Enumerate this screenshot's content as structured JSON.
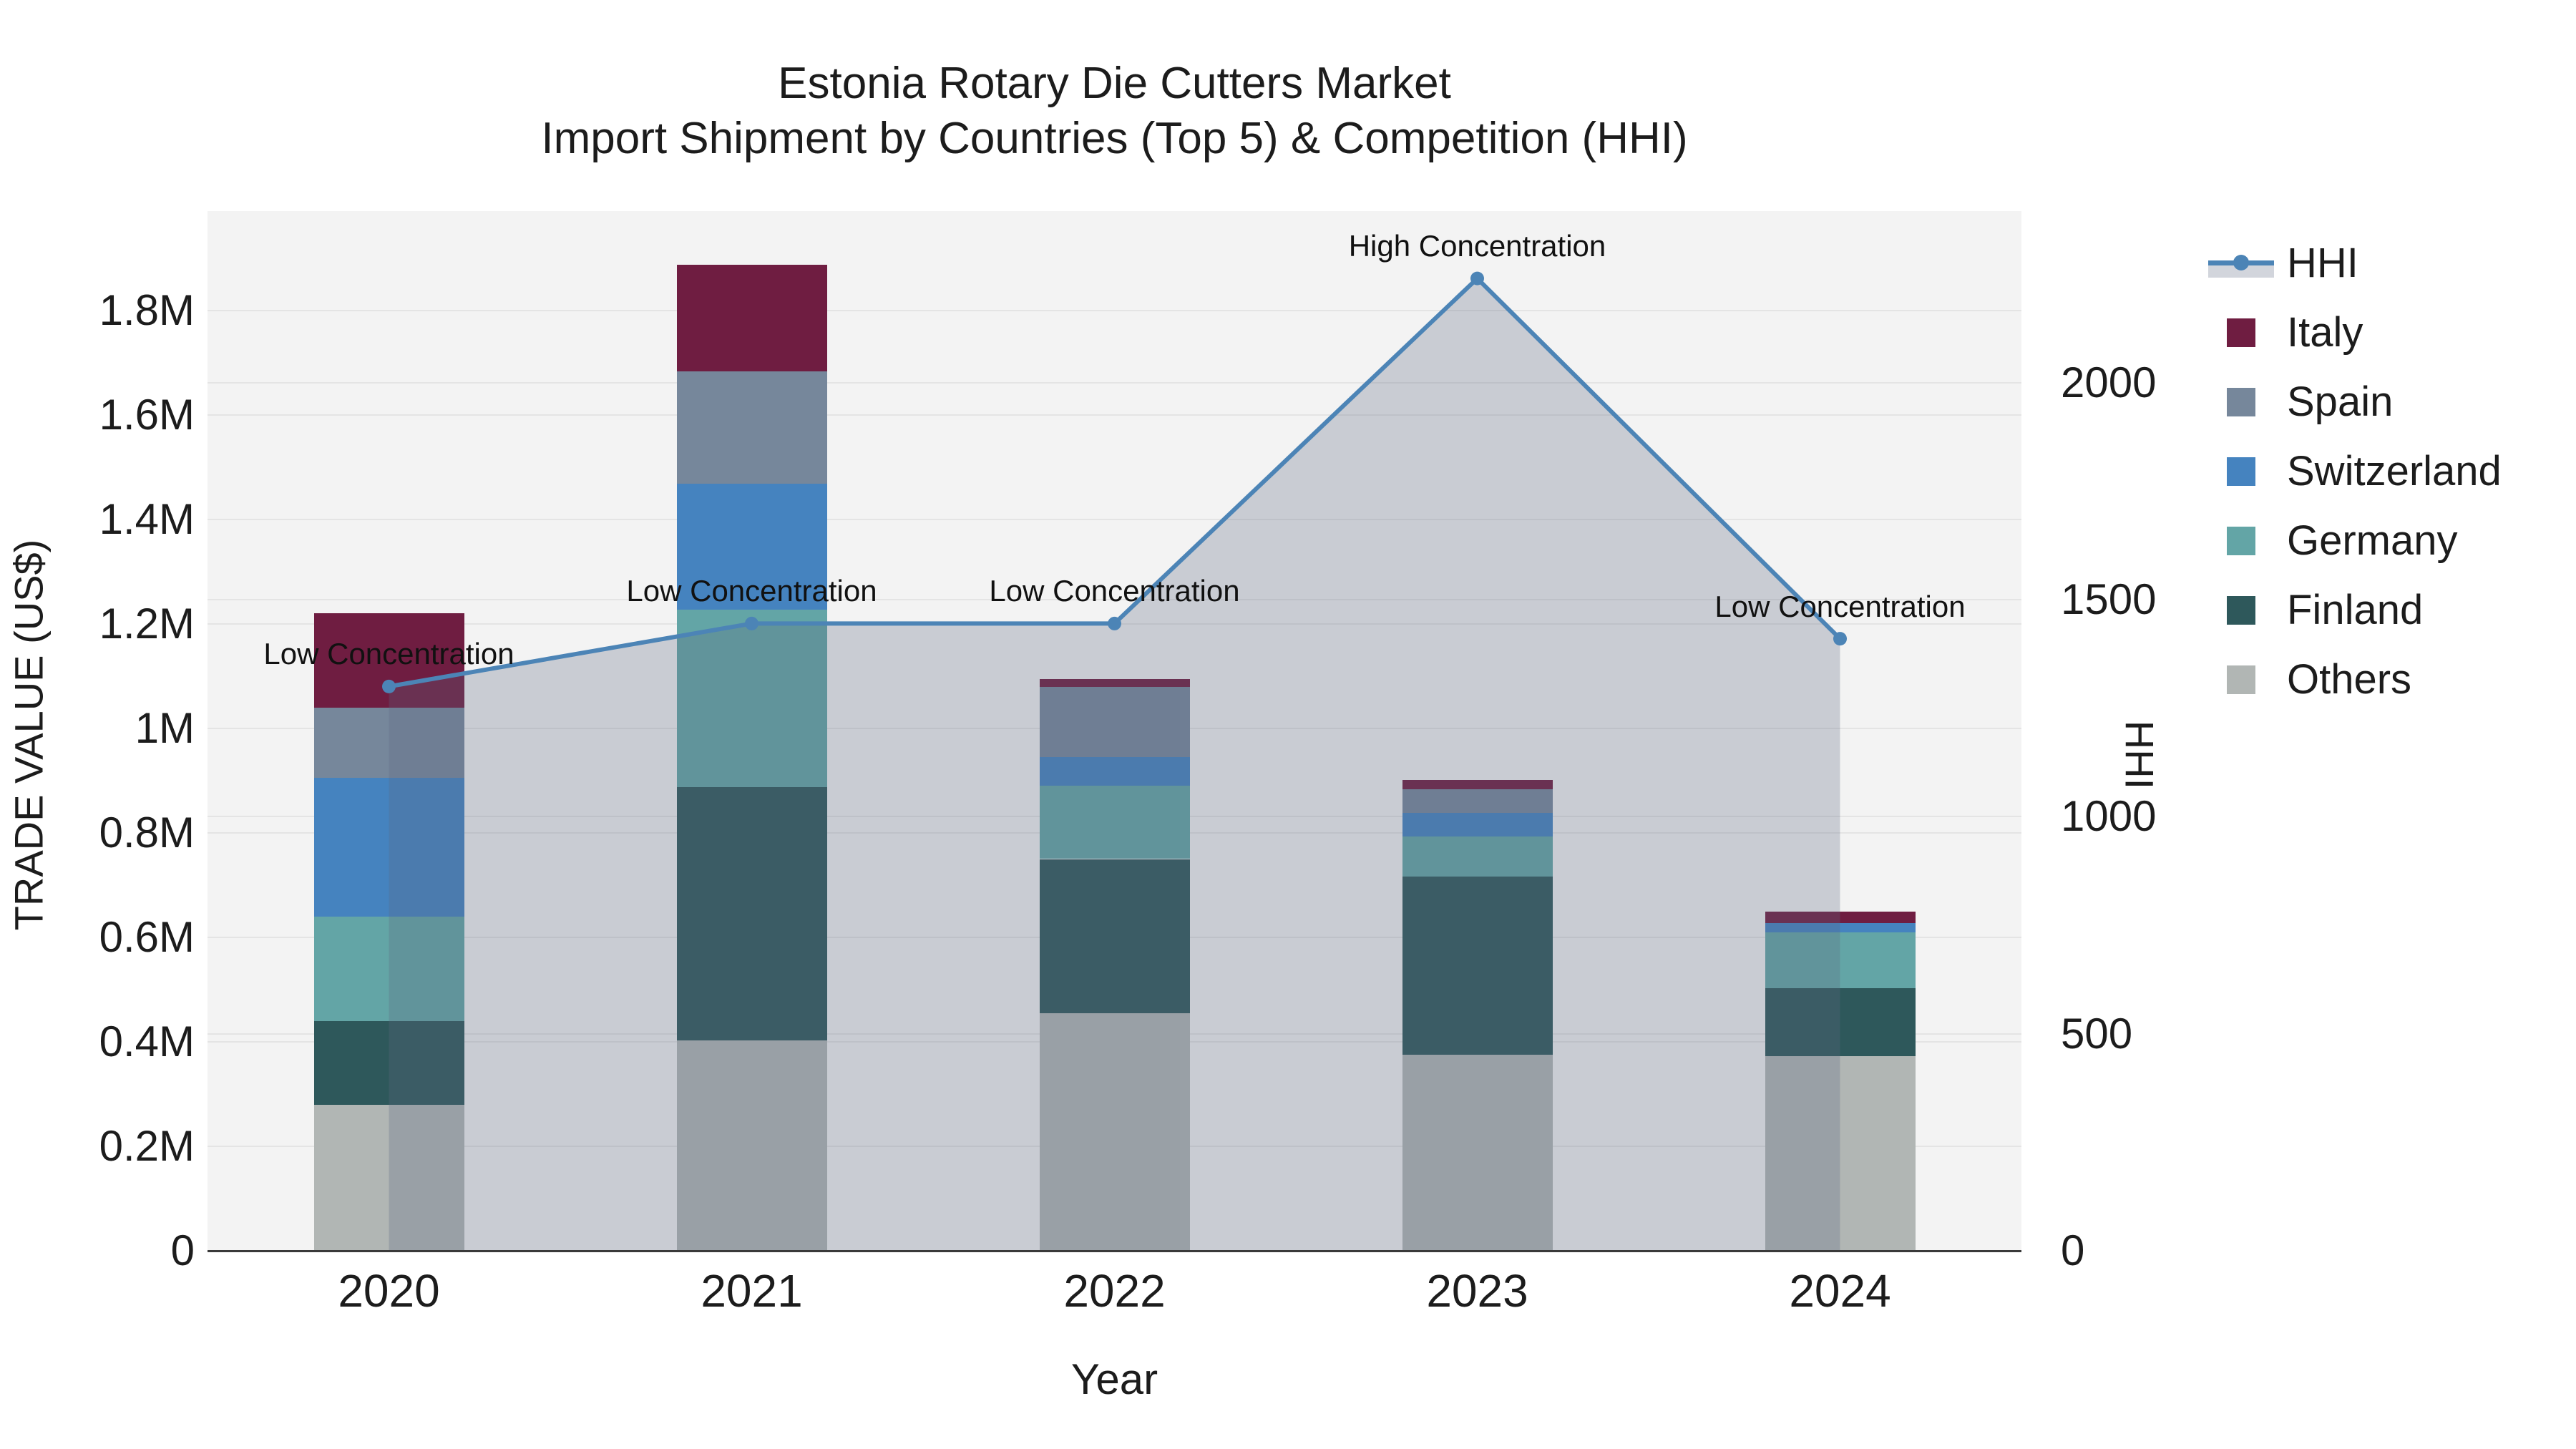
{
  "title": {
    "line1": "Estonia Rotary Die Cutters Market",
    "line2": "Import Shipment by Countries (Top 5) & Competition (HHI)"
  },
  "axes": {
    "x": {
      "label": "Year",
      "ticks": [
        "2020",
        "2021",
        "2022",
        "2023",
        "2024"
      ]
    },
    "y_left": {
      "label": "TRADE VALUE (US$)",
      "ticks": [
        "0",
        "0.2M",
        "0.4M",
        "0.6M",
        "0.8M",
        "1M",
        "1.2M",
        "1.4M",
        "1.6M",
        "1.8M"
      ]
    },
    "y_right": {
      "label": "HHI",
      "ticks": [
        "0",
        "500",
        "1000",
        "1500",
        "2000"
      ]
    }
  },
  "legend": {
    "items": [
      {
        "label": "HHI",
        "type": "line"
      },
      {
        "label": "Italy",
        "type": "swatch"
      },
      {
        "label": "Spain",
        "type": "swatch"
      },
      {
        "label": "Switzerland",
        "type": "swatch"
      },
      {
        "label": "Germany",
        "type": "swatch"
      },
      {
        "label": "Finland",
        "type": "swatch"
      },
      {
        "label": "Others",
        "type": "swatch"
      }
    ]
  },
  "colors": {
    "background": "#ffffff",
    "plot_background": "#f3f3f3",
    "gridline": "#e4e4e4",
    "axis_line": "#3a3a3a",
    "text": "#1c1c1c"
  },
  "chart_data": {
    "type": "bar",
    "stacked": true,
    "title": "Estonia Rotary Die Cutters Market / Import Shipment by Countries (Top 5) & Competition (HHI)",
    "xlabel": "Year",
    "ylabel": "TRADE VALUE (US$)",
    "ylabel_right": "HHI",
    "categories": [
      "2020",
      "2021",
      "2022",
      "2023",
      "2024"
    ],
    "series": [
      {
        "name": "Italy",
        "color": "#6f1d41",
        "values": [
          180000,
          205000,
          15000,
          18000,
          22000
        ]
      },
      {
        "name": "Spain",
        "color": "#76879b",
        "values": [
          135000,
          215000,
          135000,
          45000,
          0
        ]
      },
      {
        "name": "Switzerland",
        "color": "#4583bf",
        "values": [
          265000,
          240000,
          55000,
          45000,
          18000
        ]
      },
      {
        "name": "Germany",
        "color": "#63a5a6",
        "values": [
          200000,
          340000,
          140000,
          76000,
          107000
        ]
      },
      {
        "name": "Finland",
        "color": "#2e585b",
        "values": [
          160000,
          485000,
          295000,
          342000,
          130000
        ]
      },
      {
        "name": "Others",
        "color": "#b1b6b4",
        "values": [
          280000,
          403000,
          455000,
          375000,
          373000
        ]
      }
    ],
    "bar_totals": [
      1220000,
      1888000,
      1095000,
      901000,
      650000
    ],
    "line_series": {
      "name": "HHI",
      "axis": "right",
      "color": "#4c84b6",
      "fill_color": "rgba(92,104,130,0.28)",
      "values": [
        1300,
        1445,
        1445,
        2240,
        1410
      ]
    },
    "annotations": [
      {
        "text": "Low Concentration",
        "x_index": 0
      },
      {
        "text": "Low Concentration",
        "x_index": 1
      },
      {
        "text": "Low Concentration",
        "x_index": 2
      },
      {
        "text": "High Concentration",
        "x_index": 3
      },
      {
        "text": "Low Concentration",
        "x_index": 4
      }
    ],
    "ylim": [
      0,
      1990000
    ],
    "ylim_right": [
      0,
      2395
    ],
    "yticks_left": {
      "values": [
        0,
        200000,
        400000,
        600000,
        800000,
        1000000,
        1200000,
        1400000,
        1600000,
        1800000
      ],
      "labels": [
        "0",
        "0.2M",
        "0.4M",
        "0.6M",
        "0.8M",
        "1M",
        "1.2M",
        "1.4M",
        "1.6M",
        "1.8M"
      ]
    },
    "yticks_right": {
      "values": [
        0,
        500,
        1000,
        1500,
        2000
      ],
      "labels": [
        "0",
        "500",
        "1000",
        "1500",
        "2000"
      ]
    },
    "grid": true,
    "legend_position": "right"
  }
}
